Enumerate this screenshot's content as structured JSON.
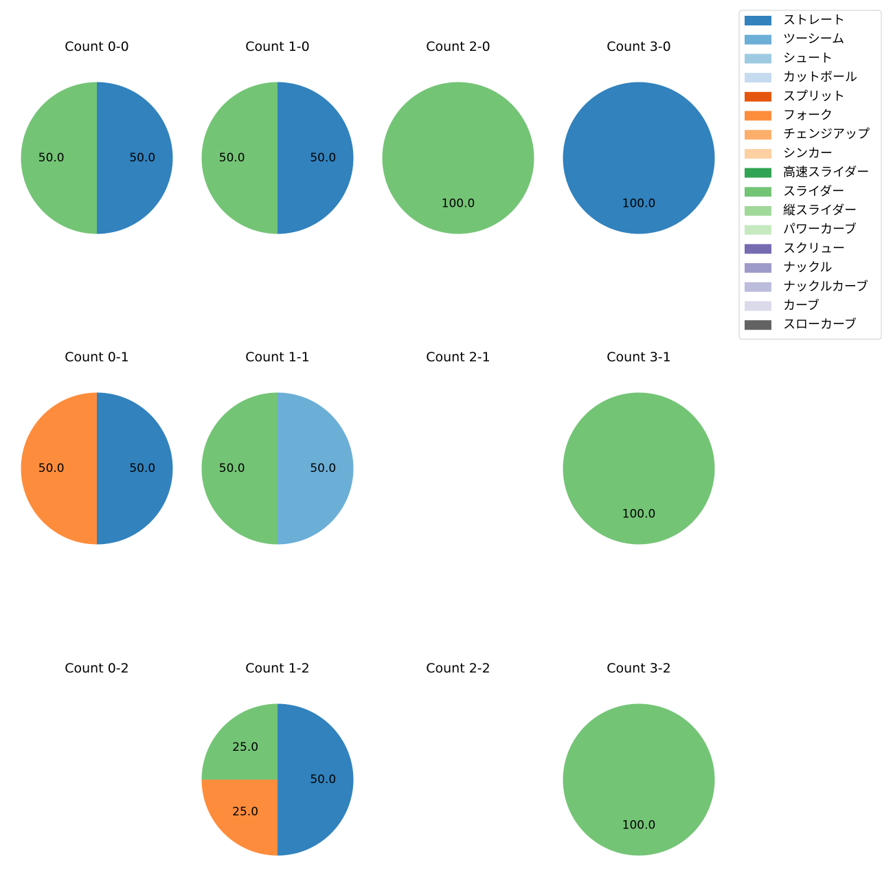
{
  "chart_data": {
    "type": "pie",
    "legend_position": "top-right",
    "colors": {
      "ストレート": "#3182bd",
      "ツーシーム": "#6baed6",
      "シュート": "#9ecae1",
      "カットボール": "#c6dbef",
      "スプリット": "#e6550d",
      "フォーク": "#fd8d3c",
      "チェンジアップ": "#fdae6b",
      "シンカー": "#fdd0a2",
      "高速スライダー": "#31a354",
      "スライダー": "#74c476",
      "縦スライダー": "#a1d99b",
      "パワーカーブ": "#c7e9c0",
      "スクリュー": "#756bb1",
      "ナックル": "#9e9ac8",
      "ナックルカーブ": "#bcbddc",
      "カーブ": "#dadaeb",
      "スローカーブ": "#636363"
    },
    "legend": [
      "ストレート",
      "ツーシーム",
      "シュート",
      "カットボール",
      "スプリット",
      "フォーク",
      "チェンジアップ",
      "シンカー",
      "高速スライダー",
      "スライダー",
      "縦スライダー",
      "パワーカーブ",
      "スクリュー",
      "ナックル",
      "ナックルカーブ",
      "カーブ",
      "スローカーブ"
    ],
    "panels": [
      {
        "title": "Count 0-0",
        "slices": [
          {
            "label": "ストレート",
            "value": 50.0
          },
          {
            "label": "スライダー",
            "value": 50.0
          }
        ]
      },
      {
        "title": "Count 1-0",
        "slices": [
          {
            "label": "ストレート",
            "value": 50.0
          },
          {
            "label": "スライダー",
            "value": 50.0
          }
        ]
      },
      {
        "title": "Count 2-0",
        "slices": [
          {
            "label": "スライダー",
            "value": 100.0
          }
        ]
      },
      {
        "title": "Count 3-0",
        "slices": [
          {
            "label": "ストレート",
            "value": 100.0
          }
        ]
      },
      {
        "title": "Count 0-1",
        "slices": [
          {
            "label": "ストレート",
            "value": 50.0
          },
          {
            "label": "フォーク",
            "value": 50.0
          }
        ]
      },
      {
        "title": "Count 1-1",
        "slices": [
          {
            "label": "ツーシーム",
            "value": 50.0
          },
          {
            "label": "スライダー",
            "value": 50.0
          }
        ]
      },
      {
        "title": "Count 2-1",
        "slices": []
      },
      {
        "title": "Count 3-1",
        "slices": [
          {
            "label": "スライダー",
            "value": 100.0
          }
        ]
      },
      {
        "title": "Count 0-2",
        "slices": []
      },
      {
        "title": "Count 1-2",
        "slices": [
          {
            "label": "ストレート",
            "value": 50.0
          },
          {
            "label": "フォーク",
            "value": 25.0
          },
          {
            "label": "スライダー",
            "value": 25.0
          }
        ]
      },
      {
        "title": "Count 2-2",
        "slices": []
      },
      {
        "title": "Count 3-2",
        "slices": [
          {
            "label": "スライダー",
            "value": 100.0
          }
        ]
      }
    ]
  }
}
